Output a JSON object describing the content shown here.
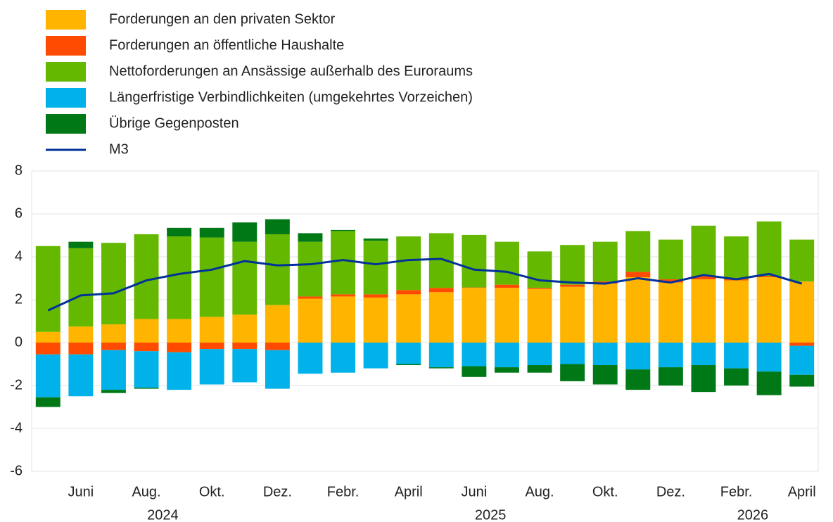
{
  "chart_data": {
    "type": "bar",
    "stacked": true,
    "categories": [
      null,
      "Juni",
      null,
      "Aug.",
      null,
      "Okt.",
      null,
      "Dez.",
      null,
      "Febr.",
      null,
      "April",
      null,
      "Juni",
      null,
      "Aug.",
      null,
      "Okt.",
      null,
      "Dez.",
      null,
      "Febr.",
      null,
      "April"
    ],
    "category_groups": [
      {
        "label": "2024",
        "count": 8
      },
      {
        "label": "2025",
        "count": 12
      },
      {
        "label": "2026",
        "count": 4
      }
    ],
    "ylim": [
      -6,
      8
    ],
    "yticks": [
      -6,
      -4,
      -2,
      0,
      2,
      4,
      6,
      8
    ],
    "grid": true,
    "series": [
      {
        "name": "Forderungen an den privaten Sektor",
        "color": "#FFB400",
        "values": [
          0.5,
          0.75,
          0.85,
          1.1,
          1.1,
          1.2,
          1.3,
          1.75,
          2.05,
          2.15,
          2.1,
          2.25,
          2.35,
          2.55,
          2.55,
          2.5,
          2.6,
          2.75,
          3.05,
          2.8,
          2.95,
          2.9,
          3.05,
          2.85
        ]
      },
      {
        "name": "Forderungen an öffentliche Haushalte",
        "color": "#FF4B00",
        "values": [
          -0.55,
          -0.55,
          -0.35,
          -0.4,
          -0.45,
          -0.3,
          -0.3,
          -0.35,
          0.1,
          0.1,
          0.15,
          0.2,
          0.2,
          0.02,
          0.15,
          0.05,
          0.1,
          0.1,
          0.25,
          0.15,
          0.15,
          0.05,
          0.05,
          -0.15
        ]
      },
      {
        "name": "Nettoforderungen an Ansässige außerhalb des Euroraums",
        "color": "#65B800",
        "values": [
          4.0,
          3.65,
          3.8,
          3.95,
          3.85,
          3.7,
          3.4,
          3.3,
          2.55,
          2.95,
          2.5,
          2.5,
          2.55,
          2.45,
          2.0,
          1.7,
          1.85,
          1.85,
          1.9,
          1.85,
          2.35,
          2.0,
          2.55,
          1.95
        ]
      },
      {
        "name": "Längerfristige Verbindlichkeiten (umgekehrtes Vorzeichen)",
        "color": "#00B1EA",
        "values": [
          -2.0,
          -1.95,
          -1.85,
          -1.7,
          -1.75,
          -1.65,
          -1.55,
          -1.8,
          -1.45,
          -1.4,
          -1.2,
          -1.0,
          -1.15,
          -1.1,
          -1.15,
          -1.05,
          -1.0,
          -1.05,
          -1.25,
          -1.15,
          -1.05,
          -1.2,
          -1.35,
          -1.35
        ]
      },
      {
        "name": "Übrige Gegenposten",
        "color": "#007816",
        "values": [
          -0.45,
          0.3,
          -0.15,
          -0.05,
          0.4,
          0.45,
          0.9,
          0.7,
          0.4,
          0.05,
          0.1,
          -0.05,
          -0.05,
          -0.5,
          -0.25,
          -0.35,
          -0.8,
          -0.9,
          -0.95,
          -0.85,
          -1.25,
          -0.8,
          -1.1,
          -0.55
        ]
      },
      {
        "name": "M3",
        "color": "#003299",
        "type": "line",
        "values": [
          1.5,
          2.2,
          2.3,
          2.9,
          3.2,
          3.4,
          3.8,
          3.6,
          3.65,
          3.85,
          3.65,
          3.85,
          3.9,
          3.4,
          3.3,
          2.9,
          2.8,
          2.75,
          3.0,
          2.8,
          3.15,
          2.95,
          3.2,
          2.75
        ]
      }
    ]
  }
}
